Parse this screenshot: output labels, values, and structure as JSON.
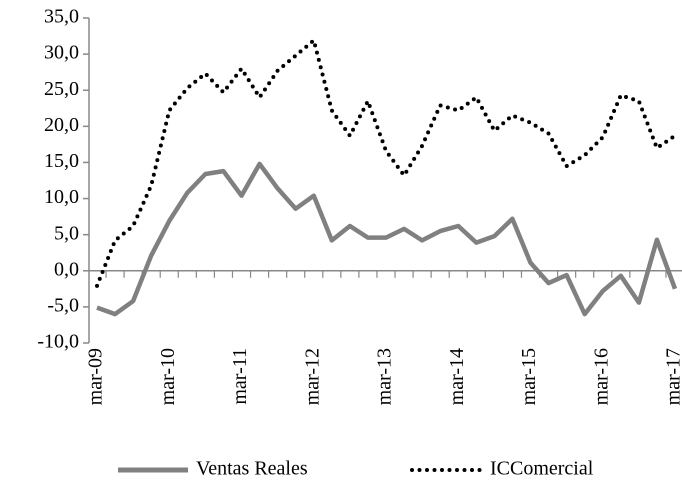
{
  "chart_data": {
    "type": "line",
    "categories": [
      "mar-09",
      null,
      null,
      null,
      "mar-10",
      null,
      null,
      null,
      "mar-11",
      null,
      null,
      null,
      "mar-12",
      null,
      null,
      null,
      "mar-13",
      null,
      null,
      null,
      "mar-14",
      null,
      null,
      null,
      "mar-15",
      null,
      null,
      null,
      "mar-16",
      null,
      null,
      null,
      "mar-17"
    ],
    "series": [
      {
        "name": "Ventas Reales",
        "color": "#808080",
        "style": "solid",
        "values": [
          -5.1,
          -6.0,
          -4.2,
          2.1,
          6.9,
          10.8,
          13.4,
          13.8,
          10.4,
          14.8,
          11.4,
          8.6,
          10.4,
          4.2,
          6.2,
          4.6,
          4.6,
          5.8,
          4.2,
          5.5,
          6.2,
          3.9,
          4.8,
          7.2,
          1.1,
          -1.7,
          -0.6,
          -6.0,
          -2.8,
          -0.7,
          -4.4,
          4.3,
          -2.5
        ]
      },
      {
        "name": "ICComercial",
        "color": "#000000",
        "style": "dotted",
        "values": [
          -2.1,
          4.2,
          6.2,
          11.8,
          22.2,
          25.3,
          27.3,
          24.7,
          28.0,
          24.0,
          27.7,
          29.8,
          31.9,
          22.2,
          18.7,
          23.5,
          16.6,
          13.2,
          17.3,
          22.9,
          22.2,
          24.0,
          19.4,
          21.5,
          20.5,
          19.0,
          14.5,
          16.0,
          18.5,
          24.3,
          23.5,
          17.0,
          18.7
        ]
      }
    ],
    "ylim": [
      -10,
      35
    ],
    "yticks": [
      {
        "value": -10,
        "label": "-10,0"
      },
      {
        "value": -5,
        "label": "-5,0"
      },
      {
        "value": 0,
        "label": "0,0"
      },
      {
        "value": 5,
        "label": "5,0"
      },
      {
        "value": 10,
        "label": "10,0"
      },
      {
        "value": 15,
        "label": "15,0"
      },
      {
        "value": 20,
        "label": "20,0"
      },
      {
        "value": 25,
        "label": "25,0"
      },
      {
        "value": 30,
        "label": "30,0"
      },
      {
        "value": 35,
        "label": "35,0"
      }
    ],
    "grid": false,
    "legend": "bottom"
  }
}
